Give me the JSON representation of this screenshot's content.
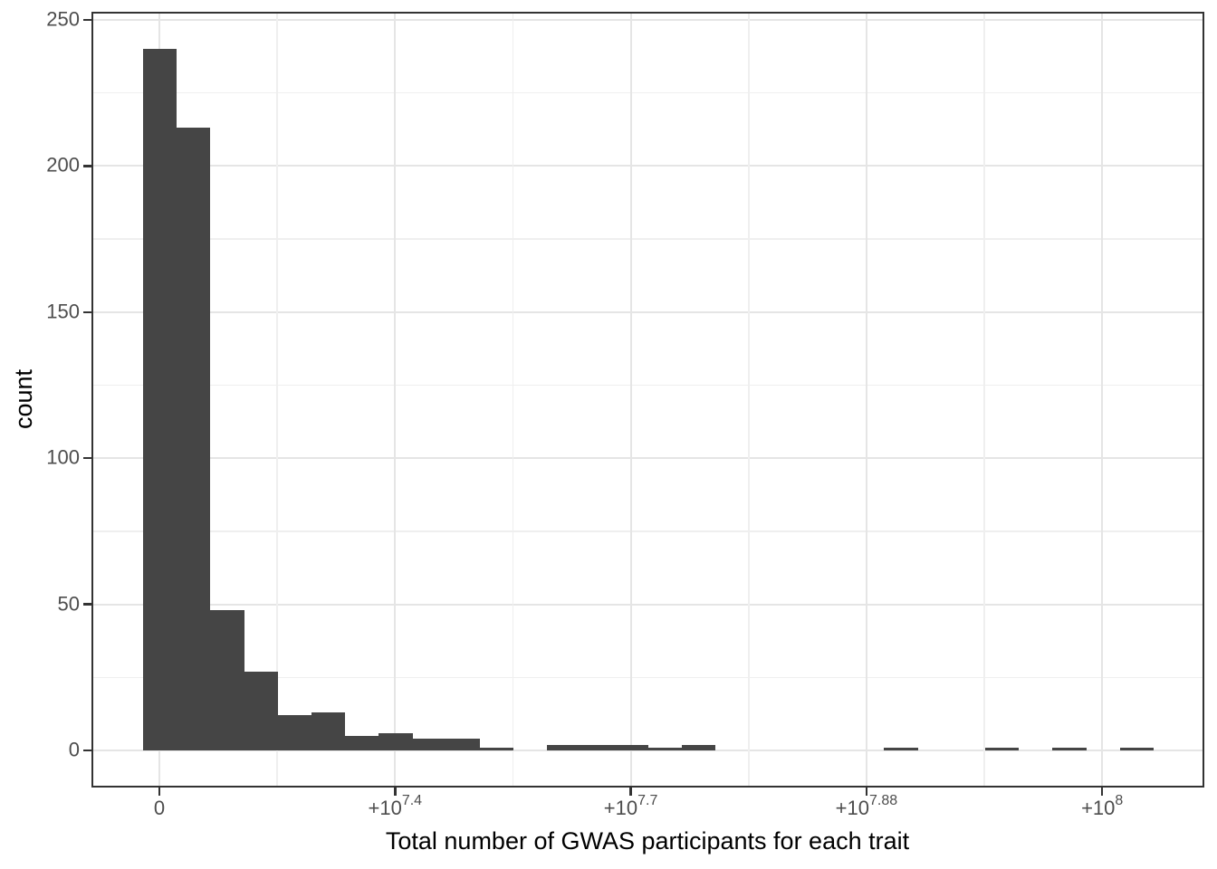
{
  "figure": {
    "x_axis_title": "Total number of GWAS participants for each trait",
    "y_axis_title": "count"
  },
  "chart_data": {
    "type": "histogram",
    "title": "",
    "xlabel": "Total number of GWAS participants for each trait",
    "ylabel": "count",
    "x_scale": "pseudo-log (signed-log) transformed axis, breaks evenly spaced",
    "x_ticks": [
      {
        "base": "0",
        "sup": ""
      },
      {
        "base": "+10",
        "sup": "7.4"
      },
      {
        "base": "+10",
        "sup": "7.7"
      },
      {
        "base": "+10",
        "sup": "7.88"
      },
      {
        "base": "+10",
        "sup": "8"
      }
    ],
    "x_tick_labels_flat": [
      "0",
      "+10^7.4",
      "+10^7.7",
      "+10^7.88",
      "+10^8"
    ],
    "y_major_breaks": [
      0,
      50,
      100,
      150,
      200,
      250
    ],
    "y_minor_breaks": [
      25,
      75,
      125,
      175,
      225
    ],
    "y_tick_labels": [
      "0",
      "50",
      "100",
      "150",
      "200",
      "250"
    ],
    "ylim": [
      0,
      252
    ],
    "n_bins": 30,
    "bin_counts": [
      240,
      213,
      48,
      27,
      12,
      13,
      5,
      6,
      4,
      4,
      1,
      0,
      2,
      2,
      2,
      1,
      2,
      0,
      0,
      0,
      0,
      0,
      1,
      0,
      0,
      1,
      0,
      1,
      0,
      1
    ],
    "grid": "major + minor light gray grid on white panel, dark panel border",
    "legend": false,
    "colors": {
      "bar": "#454545",
      "grid_major": "#e5e5e5",
      "grid_minor": "#efefef",
      "panel_border": "#333333",
      "tick_mark": "#333333",
      "tick_label": "#4d4d4d",
      "axis_title": "#000000",
      "background": "#ffffff"
    }
  }
}
